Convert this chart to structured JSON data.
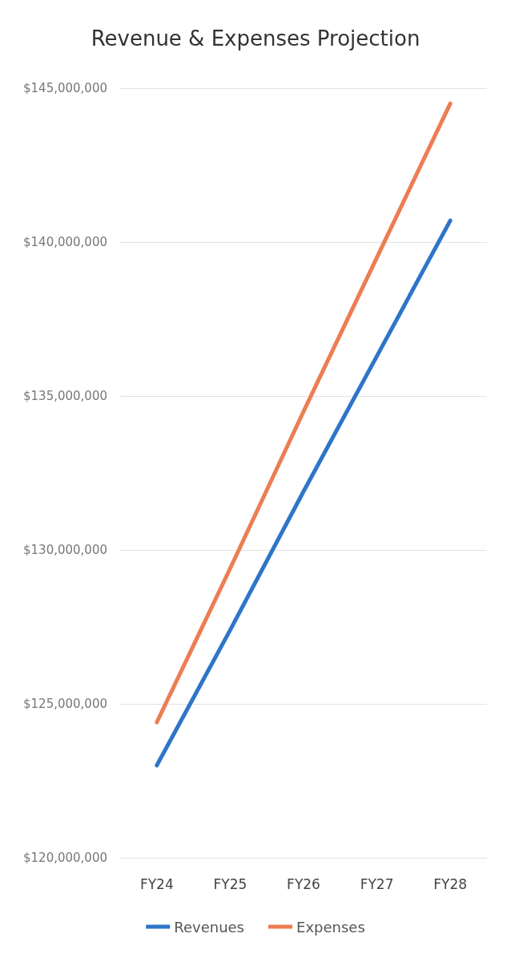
{
  "chart_data": {
    "type": "line",
    "title": "Revenue & Expenses Projection",
    "categories": [
      "FY24",
      "FY25",
      "FY26",
      "FY27",
      "FY28"
    ],
    "series": [
      {
        "name": "Revenues",
        "color": "#2e75c9",
        "values": [
          123000000,
          127400000,
          131900000,
          136300000,
          140700000
        ]
      },
      {
        "name": "Expenses",
        "color": "#ed7d52",
        "values": [
          124400000,
          129400000,
          134500000,
          139500000,
          144500000
        ]
      }
    ],
    "ylim": [
      120000000,
      145000000
    ],
    "yticks": [
      {
        "value": 120000000,
        "label": "$120,000,000"
      },
      {
        "value": 125000000,
        "label": "$125,000,000"
      },
      {
        "value": 130000000,
        "label": "$130,000,000"
      },
      {
        "value": 135000000,
        "label": "$135,000,000"
      },
      {
        "value": 140000000,
        "label": "$140,000,000"
      },
      {
        "value": 145000000,
        "label": "$145,000,000"
      }
    ],
    "grid": "y",
    "legend": "bottom",
    "marker": "none",
    "line_style": "solid"
  }
}
